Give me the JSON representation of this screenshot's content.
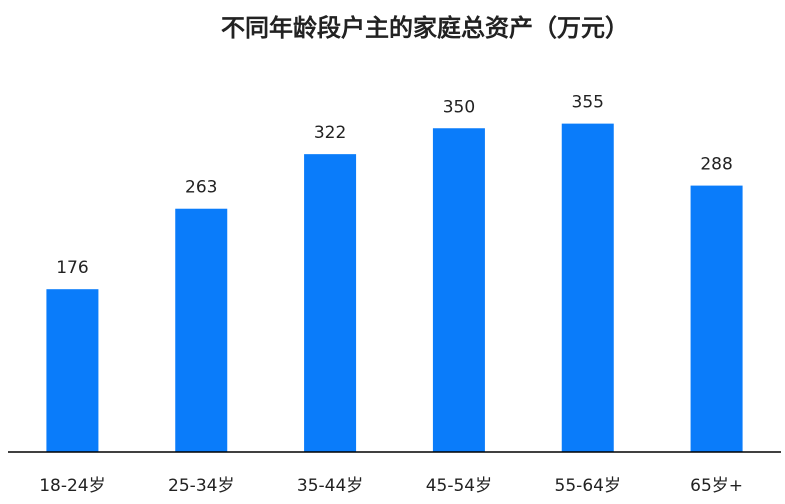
{
  "chart_data": {
    "type": "bar",
    "title": "不同年龄段户主的家庭总资产（万元）",
    "categories": [
      "18-24岁",
      "25-34岁",
      "35-44岁",
      "45-54岁",
      "55-64岁",
      "65岁+"
    ],
    "values": [
      176,
      263,
      322,
      350,
      355,
      288
    ],
    "color": "#0a7cfa",
    "ylim": [
      0,
      400
    ],
    "grid": false
  }
}
